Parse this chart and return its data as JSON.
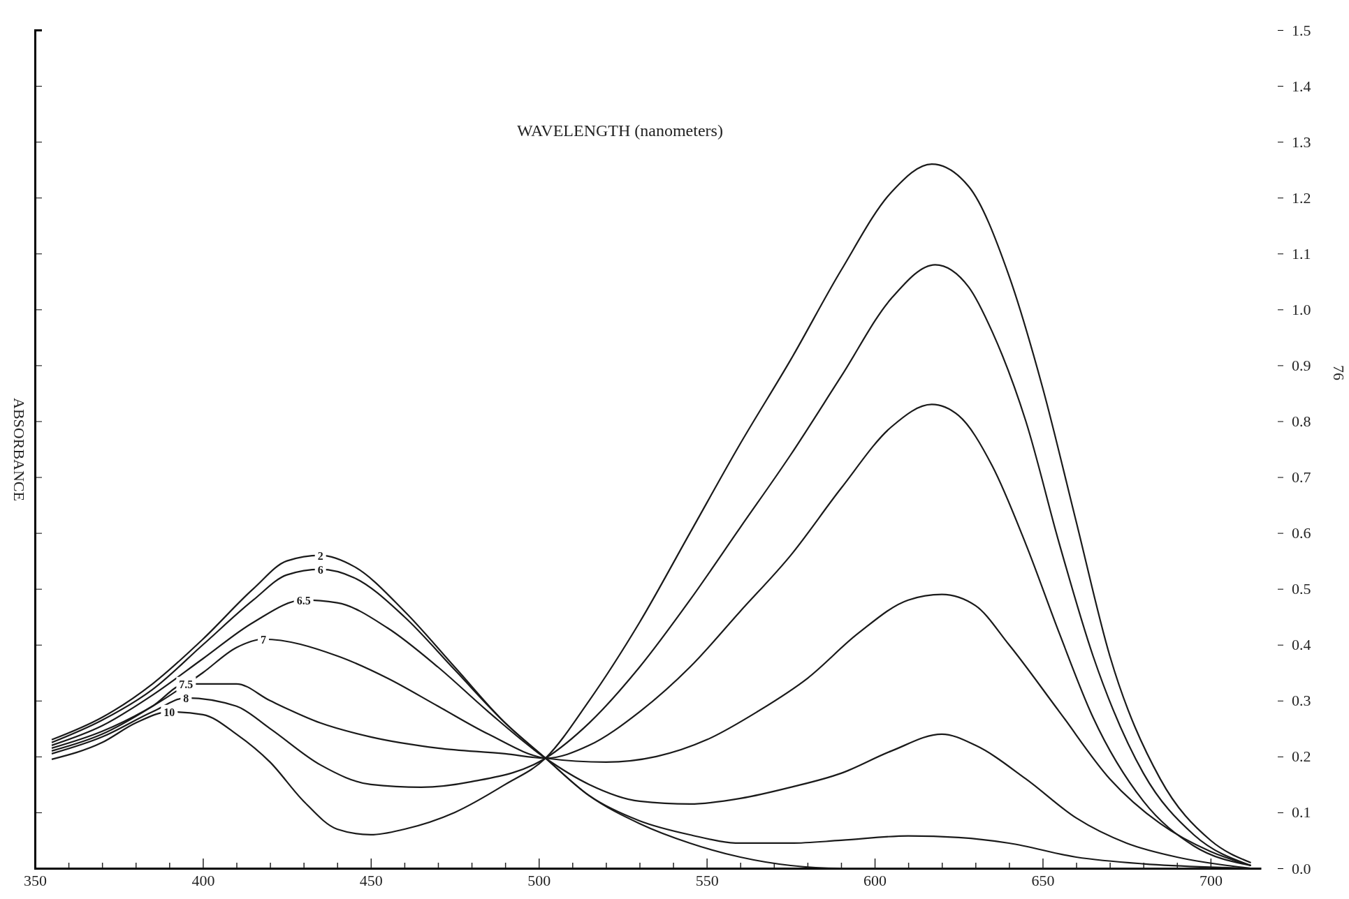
{
  "chart_data": {
    "type": "line",
    "xlabel": "WAVELENGTH (nanometers)",
    "ylabel": "ABSORBANCE",
    "annotations": [
      "76"
    ],
    "xlim": [
      350,
      715
    ],
    "xticks": [
      350,
      {
        "value": 360,
        "label": null
      },
      {
        "value": 370,
        "label": null
      },
      {
        "value": 380,
        "label": null
      },
      {
        "value": 390,
        "label": null
      },
      400,
      {
        "value": 410,
        "label": null
      },
      {
        "value": 420,
        "label": null
      },
      {
        "value": 430,
        "label": null
      },
      {
        "value": 440,
        "label": null
      },
      450,
      {
        "value": 460,
        "label": null
      },
      {
        "value": 470,
        "label": null
      },
      {
        "value": 480,
        "label": null
      },
      {
        "value": 490,
        "label": null
      },
      500,
      {
        "value": 510,
        "label": null
      },
      {
        "value": 520,
        "label": null
      },
      {
        "value": 530,
        "label": null
      },
      {
        "value": 540,
        "label": null
      },
      550,
      {
        "value": 560,
        "label": null
      },
      {
        "value": 570,
        "label": null
      },
      {
        "value": 580,
        "label": null
      },
      {
        "value": 590,
        "label": null
      },
      600,
      {
        "value": 610,
        "label": null
      },
      {
        "value": 620,
        "label": null
      },
      {
        "value": 630,
        "label": null
      },
      {
        "value": 640,
        "label": null
      },
      650,
      {
        "value": 660,
        "label": null
      },
      {
        "value": 670,
        "label": null
      },
      {
        "value": 680,
        "label": null
      },
      {
        "value": 690,
        "label": null
      },
      700
    ],
    "ylim": [
      0,
      1.5
    ],
    "yticks": [
      {
        "value": 0,
        "label": "0.0"
      },
      {
        "value": 0.1,
        "label": "0.1"
      },
      {
        "value": 0.2,
        "label": "0.2"
      },
      {
        "value": 0.3,
        "label": "0.3"
      },
      {
        "value": 0.4,
        "label": "0.4"
      },
      {
        "value": 0.5,
        "label": "0.5"
      },
      {
        "value": 0.6,
        "label": "0.6"
      },
      {
        "value": 0.7,
        "label": "0.7"
      },
      {
        "value": 0.8,
        "label": "0.8"
      },
      {
        "value": 0.9,
        "label": "0.9"
      },
      {
        "value": 1.0,
        "label": "1.0"
      },
      {
        "value": 1.1,
        "label": "1.1"
      },
      {
        "value": 1.2,
        "label": "1.2"
      },
      {
        "value": 1.3,
        "label": "1.3"
      },
      {
        "value": 1.4,
        "label": "1.4"
      },
      {
        "value": 1.5,
        "label": "1.5"
      }
    ],
    "grid": false,
    "legend": false,
    "marker": "none",
    "line_style": "solid",
    "series": [
      {
        "name": "2",
        "color": "#1a1a1a",
        "x": [
          355,
          370,
          385,
          400,
          415,
          425,
          435,
          445,
          460,
          475,
          490,
          502,
          515,
          530,
          545,
          560,
          575,
          590,
          620,
          650,
          700
        ],
        "values": [
          0.23,
          0.27,
          0.33,
          0.41,
          0.5,
          0.55,
          0.56,
          0.54,
          0.46,
          0.36,
          0.26,
          0.197,
          0.13,
          0.08,
          0.045,
          0.02,
          0.005,
          0,
          0,
          0,
          0
        ]
      },
      {
        "name": "6",
        "color": "#1a1a1a",
        "x": [
          355,
          370,
          385,
          400,
          415,
          425,
          435,
          445,
          460,
          475,
          490,
          502,
          515,
          530,
          545,
          560,
          575,
          590,
          610,
          625,
          640,
          660,
          680,
          700,
          712
        ],
        "values": [
          0.225,
          0.265,
          0.32,
          0.4,
          0.48,
          0.525,
          0.535,
          0.52,
          0.45,
          0.355,
          0.26,
          0.197,
          0.13,
          0.085,
          0.06,
          0.045,
          0.045,
          0.05,
          0.058,
          0.055,
          0.045,
          0.02,
          0.008,
          0.002,
          0
        ]
      },
      {
        "name": "6.5",
        "color": "#1a1a1a",
        "x": [
          355,
          370,
          385,
          400,
          415,
          430,
          440,
          455,
          470,
          485,
          502,
          515,
          530,
          545,
          560,
          575,
          590,
          605,
          620,
          630,
          645,
          660,
          675,
          690,
          705,
          712
        ],
        "values": [
          0.22,
          0.255,
          0.31,
          0.375,
          0.44,
          0.48,
          0.475,
          0.43,
          0.36,
          0.28,
          0.197,
          0.15,
          0.12,
          0.115,
          0.125,
          0.145,
          0.17,
          0.21,
          0.24,
          0.22,
          0.16,
          0.09,
          0.045,
          0.02,
          0.005,
          0
        ]
      },
      {
        "name": "7",
        "color": "#1a1a1a",
        "x": [
          355,
          370,
          385,
          400,
          410,
          418,
          440,
          455,
          470,
          485,
          502,
          520,
          535,
          550,
          565,
          580,
          595,
          610,
          620,
          630,
          640,
          655,
          670,
          685,
          700,
          712
        ],
        "values": [
          0.215,
          0.245,
          0.29,
          0.35,
          0.395,
          0.41,
          0.38,
          0.34,
          0.29,
          0.24,
          0.197,
          0.19,
          0.2,
          0.23,
          0.28,
          0.34,
          0.42,
          0.48,
          0.49,
          0.47,
          0.4,
          0.28,
          0.16,
          0.08,
          0.03,
          0.005
        ]
      },
      {
        "name": "7.5",
        "color": "#1a1a1a",
        "x": [
          355,
          370,
          385,
          395,
          410,
          420,
          435,
          450,
          470,
          490,
          502,
          515,
          530,
          545,
          560,
          575,
          590,
          605,
          617,
          625,
          635,
          645,
          655,
          665,
          680,
          695,
          712
        ],
        "values": [
          0.21,
          0.24,
          0.29,
          0.33,
          0.33,
          0.3,
          0.26,
          0.235,
          0.215,
          0.205,
          0.197,
          0.22,
          0.28,
          0.36,
          0.46,
          0.56,
          0.68,
          0.79,
          0.83,
          0.81,
          0.72,
          0.58,
          0.42,
          0.27,
          0.12,
          0.04,
          0.005
        ]
      },
      {
        "name": "8",
        "color": "#1a1a1a",
        "x": [
          355,
          370,
          385,
          395,
          410,
          420,
          435,
          450,
          465,
          480,
          502,
          515,
          530,
          545,
          560,
          575,
          590,
          605,
          618,
          628,
          635,
          645,
          655,
          665,
          680,
          695,
          712
        ],
        "values": [
          0.205,
          0.235,
          0.28,
          0.305,
          0.29,
          0.25,
          0.185,
          0.15,
          0.145,
          0.155,
          0.197,
          0.26,
          0.36,
          0.48,
          0.61,
          0.74,
          0.88,
          1.02,
          1.08,
          1.04,
          0.96,
          0.8,
          0.58,
          0.38,
          0.17,
          0.06,
          0.005
        ]
      },
      {
        "name": "10",
        "color": "#1a1a1a",
        "x": [
          355,
          370,
          380,
          390,
          400,
          410,
          420,
          430,
          440,
          450,
          460,
          475,
          490,
          502,
          515,
          530,
          545,
          560,
          575,
          590,
          605,
          617,
          628,
          640,
          650,
          660,
          670,
          685,
          700,
          712
        ],
        "values": [
          0.195,
          0.225,
          0.26,
          0.28,
          0.275,
          0.24,
          0.19,
          0.12,
          0.07,
          0.06,
          0.07,
          0.1,
          0.15,
          0.197,
          0.3,
          0.44,
          0.6,
          0.76,
          0.91,
          1.07,
          1.21,
          1.26,
          1.22,
          1.06,
          0.86,
          0.62,
          0.38,
          0.16,
          0.05,
          0.01
        ]
      }
    ]
  }
}
